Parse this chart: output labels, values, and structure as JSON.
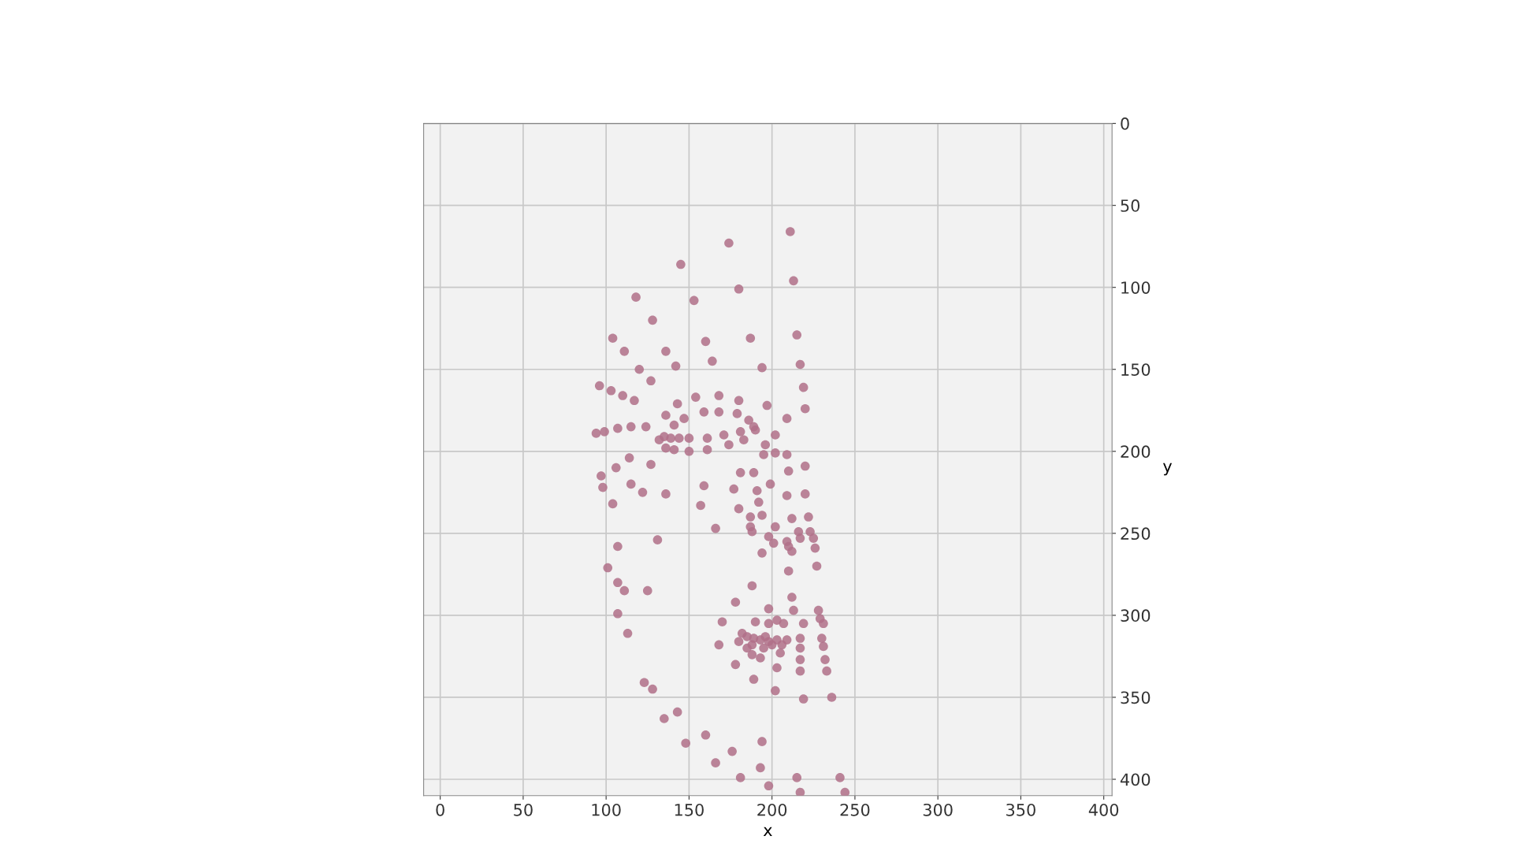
{
  "chart_data": {
    "type": "scatter",
    "xlabel": "x",
    "ylabel": "y",
    "xlim": [
      -10,
      405
    ],
    "ylim": [
      410,
      0
    ],
    "xticks": [
      0,
      50,
      100,
      150,
      200,
      250,
      300,
      350,
      400
    ],
    "yticks": [
      0,
      50,
      100,
      150,
      200,
      250,
      300,
      350,
      400
    ],
    "grid": true,
    "marker": "circle",
    "series": [
      {
        "color": "#b07088",
        "x": [
          211,
          174,
          145,
          213,
          180,
          118,
          153,
          128,
          104,
          160,
          187,
          215,
          111,
          136,
          164,
          120,
          142,
          194,
          217,
          127,
          96,
          103,
          110,
          117,
          219,
          154,
          168,
          180,
          143,
          197,
          220,
          136,
          147,
          159,
          168,
          179,
          186,
          189,
          141,
          124,
          115,
          107,
          99,
          94,
          181,
          190,
          209,
          171,
          161,
          150,
          144,
          135,
          132,
          139,
          183,
          196,
          202,
          136,
          141,
          150,
          161,
          174,
          195,
          202,
          209,
          114,
          106,
          127,
          97,
          98,
          115,
          122,
          136,
          104,
          159,
          177,
          189,
          181,
          199,
          210,
          220,
          191,
          157,
          180,
          192,
          209,
          220,
          187,
          194,
          212,
          222,
          187,
          202,
          216,
          223,
          166,
          188,
          198,
          209,
          217,
          225,
          201,
          210,
          212,
          226,
          194,
          227,
          210,
          131,
          107,
          101,
          107,
          111,
          125,
          107,
          113,
          188,
          178,
          198,
          213,
          228,
          212,
          229,
          170,
          190,
          198,
          203,
          207,
          219,
          231,
          182,
          185,
          189,
          193,
          180,
          196,
          198,
          203,
          209,
          217,
          230,
          168,
          185,
          188,
          195,
          200,
          206,
          217,
          231,
          188,
          193,
          205,
          217,
          232,
          178,
          203,
          189,
          217,
          233,
          202,
          219,
          236,
          123,
          128,
          135,
          143,
          148,
          160,
          166,
          176,
          194,
          193,
          181,
          215,
          241,
          198,
          217,
          244
        ],
        "values": [
          66,
          73,
          86,
          96,
          101,
          106,
          108,
          120,
          131,
          133,
          131,
          129,
          139,
          139,
          145,
          150,
          148,
          149,
          147,
          157,
          160,
          163,
          166,
          169,
          161,
          167,
          166,
          169,
          171,
          172,
          174,
          178,
          180,
          176,
          176,
          177,
          181,
          185,
          184,
          185,
          185,
          186,
          188,
          189,
          188,
          187,
          180,
          190,
          192,
          192,
          192,
          191,
          193,
          192,
          193,
          196,
          190,
          198,
          199,
          200,
          199,
          196,
          202,
          201,
          202,
          204,
          210,
          208,
          215,
          222,
          220,
          225,
          226,
          232,
          221,
          223,
          213,
          213,
          220,
          212,
          209,
          224,
          233,
          235,
          231,
          227,
          226,
          240,
          239,
          241,
          240,
          246,
          246,
          249,
          249,
          247,
          249,
          252,
          255,
          253,
          253,
          256,
          258,
          261,
          259,
          262,
          270,
          273,
          254,
          258,
          271,
          280,
          285,
          285,
          299,
          311,
          282,
          292,
          296,
          297,
          297,
          289,
          302,
          304,
          304,
          305,
          303,
          305,
          305,
          305,
          311,
          313,
          314,
          315,
          316,
          313,
          316,
          315,
          315,
          314,
          314,
          318,
          320,
          318,
          320,
          318,
          318,
          320,
          319,
          324,
          326,
          323,
          327,
          327,
          330,
          332,
          339,
          334,
          334,
          346,
          351,
          350,
          341,
          345,
          363,
          359,
          378,
          373,
          390,
          383,
          377,
          393,
          399,
          399,
          399,
          404,
          408,
          408
        ]
      }
    ]
  }
}
